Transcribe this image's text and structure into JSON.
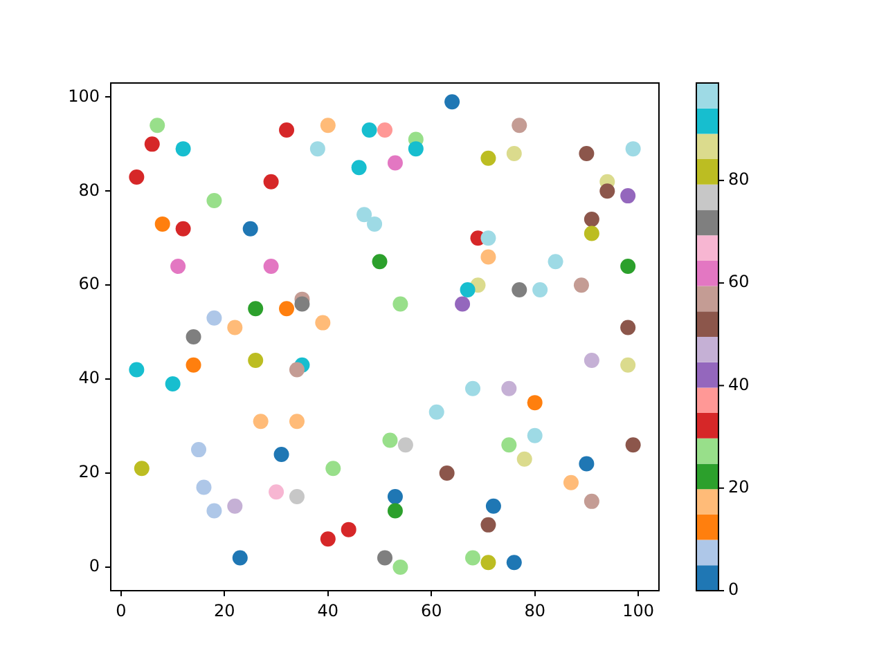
{
  "chart_data": {
    "type": "scatter",
    "x": [
      7,
      6,
      12,
      3,
      8,
      12,
      18,
      32,
      40,
      38,
      48,
      51,
      46,
      29,
      25,
      11,
      29,
      47,
      49,
      50,
      18,
      26,
      32,
      35,
      35,
      22,
      39,
      14,
      64,
      77,
      57,
      57,
      53,
      71,
      76,
      90,
      99,
      94,
      94,
      98,
      91,
      91,
      69,
      71,
      71,
      84,
      98,
      69,
      67,
      77,
      81,
      89,
      66,
      54,
      98,
      3,
      14,
      26,
      35,
      34,
      10,
      27,
      34,
      15,
      31,
      41,
      4,
      16,
      30,
      34,
      18,
      22,
      40,
      44,
      23,
      51,
      91,
      98,
      68,
      75,
      80,
      61,
      52,
      55,
      75,
      80,
      78,
      99,
      63,
      90,
      87,
      91,
      53,
      53,
      72,
      71,
      54,
      68,
      71,
      76
    ],
    "values": [
      94,
      90,
      89,
      83,
      73,
      72,
      78,
      93,
      94,
      89,
      93,
      93,
      85,
      82,
      72,
      64,
      64,
      75,
      73,
      65,
      53,
      55,
      55,
      57,
      56,
      51,
      52,
      49,
      99,
      94,
      91,
      89,
      86,
      87,
      88,
      88,
      89,
      82,
      80,
      79,
      74,
      71,
      70,
      70,
      66,
      65,
      64,
      60,
      59,
      59,
      59,
      60,
      56,
      56,
      51,
      42,
      43,
      44,
      43,
      42,
      39,
      31,
      31,
      25,
      24,
      21,
      21,
      17,
      16,
      15,
      12,
      13,
      6,
      8,
      2,
      2,
      44,
      43,
      38,
      38,
      35,
      33,
      27,
      26,
      26,
      28,
      23,
      26,
      20,
      22,
      18,
      14,
      15,
      12,
      13,
      9,
      0,
      2,
      1,
      1
    ],
    "cvalues": [
      27,
      32,
      92,
      32,
      12,
      32,
      27,
      32,
      17,
      97,
      92,
      37,
      92,
      32,
      2,
      62,
      62,
      97,
      97,
      22,
      7,
      22,
      12,
      57,
      72,
      17,
      17,
      72,
      2,
      57,
      27,
      92,
      62,
      82,
      87,
      52,
      97,
      87,
      52,
      42,
      52,
      82,
      32,
      97,
      17,
      97,
      22,
      87,
      92,
      72,
      97,
      57,
      42,
      27,
      52,
      92,
      12,
      82,
      92,
      57,
      92,
      17,
      17,
      7,
      2,
      27,
      82,
      7,
      67,
      77,
      7,
      47,
      32,
      32,
      2,
      72,
      47,
      87,
      97,
      47,
      12,
      97,
      27,
      77,
      27,
      97,
      87,
      52,
      52,
      2,
      17,
      57,
      2,
      22,
      2,
      52,
      27,
      27,
      82,
      2
    ],
    "clim": [
      0,
      99
    ],
    "cticks": [
      0,
      20,
      40,
      60,
      80
    ],
    "xlim": [
      -2,
      104
    ],
    "ylim": [
      -5,
      103
    ],
    "xticks": [
      0,
      20,
      40,
      60,
      80,
      100
    ],
    "yticks": [
      0,
      20,
      40,
      60,
      80,
      100
    ],
    "marker": "circle",
    "grid": false,
    "legend": false
  }
}
